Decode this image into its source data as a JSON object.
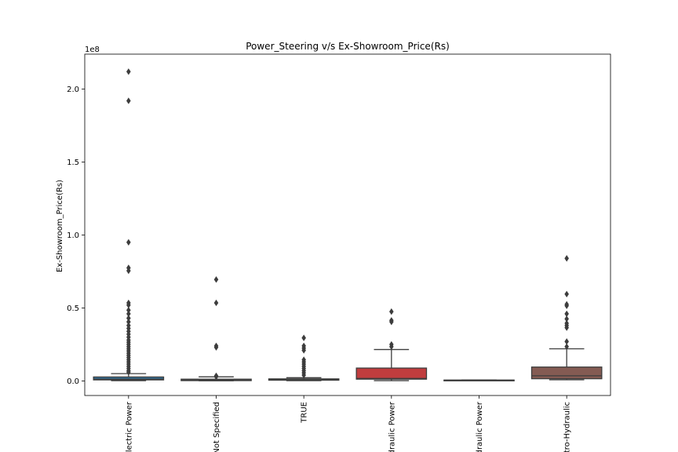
{
  "chart_data": {
    "type": "box",
    "title": "Power_Steering v/s Ex-Showroom_Price(Rs)",
    "xlabel": "",
    "ylabel": "Ex-Showroom_Price(Rs)",
    "y_scale_label": "1e8",
    "ylim": [
      -10000000,
      224000000
    ],
    "yticks": [
      0,
      50000000,
      100000000,
      150000000,
      200000000
    ],
    "ytick_labels": [
      "0.0",
      "0.5",
      "1.0",
      "1.5",
      "2.0"
    ],
    "grid": false,
    "categories": [
      "Electric Power",
      "Not Specified",
      "TRUE",
      "Hydraulic Power",
      "Hydraulic Power",
      "Electro-Hydraulic"
    ],
    "series": [
      {
        "category": "Electric Power",
        "color": "#3274a1",
        "q1": 700000,
        "median": 1300000,
        "q3": 2700000,
        "whisker_low": 200000,
        "whisker_high": 5000000,
        "outliers": [
          212000000,
          192000000,
          95000000,
          77500000,
          75500000,
          53500000,
          52000000,
          48500000,
          46000000,
          43000000,
          40500000,
          38000000,
          36000000,
          34000000,
          32000000,
          30000000,
          28000000,
          26500000,
          25000000,
          23500000,
          22000000,
          20500000,
          19000000,
          17500000,
          16000000,
          14500000,
          13000000,
          11500000,
          10000000,
          8500000,
          7000000,
          6000000
        ]
      },
      {
        "category": "Not Specified",
        "color": "#7f7f7f",
        "q1": 200000,
        "median": 600000,
        "q3": 1200000,
        "whisker_low": 100000,
        "whisker_high": 2800000,
        "outliers": [
          69500000,
          53500000,
          24000000,
          23000000,
          3500000,
          2900000
        ]
      },
      {
        "category": "TRUE",
        "color": "#3a923a",
        "q1": 500000,
        "median": 900000,
        "q3": 1400000,
        "whisker_low": 200000,
        "whisker_high": 2200000,
        "outliers": [
          29500000,
          24000000,
          22500000,
          21000000,
          14500000,
          13000000,
          11500000,
          10000000,
          8500000,
          7000000,
          5500000,
          4000000
        ]
      },
      {
        "category": "Hydraulic Power",
        "color": "#c03d3e",
        "q1": 1200000,
        "median": 1700000,
        "q3": 8800000,
        "whisker_low": 200000,
        "whisker_high": 21500000,
        "outliers": [
          47500000,
          41500000,
          40500000,
          25000000,
          23500000
        ]
      },
      {
        "category": "Hydraulic Power",
        "color": "#9372b2",
        "q1": 400000,
        "median": 500000,
        "q3": 600000,
        "whisker_low": 300000,
        "whisker_high": 700000,
        "outliers": []
      },
      {
        "category": "Electro-Hydraulic",
        "color": "#845b53",
        "q1": 1500000,
        "median": 3500000,
        "q3": 9500000,
        "whisker_low": 800000,
        "whisker_high": 22000000,
        "outliers": [
          84000000,
          59500000,
          52500000,
          51500000,
          46000000,
          42500000,
          39500000,
          38000000,
          36500000,
          27000000,
          23500000
        ]
      }
    ]
  }
}
